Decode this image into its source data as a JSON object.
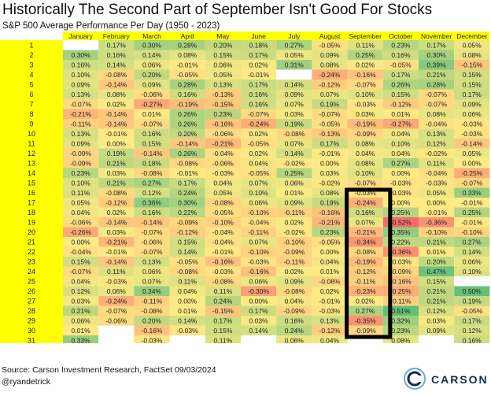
{
  "title": "Historically The Second Part of September Isn't Good For Stocks",
  "subtitle": "S&P 500 Average Performance Per Day (1950 - 2023)",
  "source": "Source: Carson Investment Research, FactSet 09/03/2024",
  "handle": "@ryandetrick",
  "logo": {
    "text": "CARSON"
  },
  "chart_data": {
    "type": "heatmap",
    "title": "Historically The Second Part of September Isn't Good For Stocks",
    "subtitle": "S&P 500 Average Performance Per Day (1950 - 2023)",
    "columns": [
      "January",
      "February",
      "March",
      "April",
      "May",
      "June",
      "July",
      "August",
      "September",
      "October",
      "November",
      "December"
    ],
    "rows": [
      "1",
      "2",
      "3",
      "4",
      "5",
      "6",
      "7",
      "8",
      "9",
      "10",
      "11",
      "12",
      "13",
      "14",
      "15",
      "16",
      "17",
      "18",
      "19",
      "20",
      "21",
      "22",
      "23",
      "24",
      "25",
      "26",
      "27",
      "28",
      "29",
      "30",
      "31"
    ],
    "values": [
      [
        null,
        "0.17%",
        "0.30%",
        "0.28%",
        "0.20%",
        "0.18%",
        "0.27%",
        "-0.05%",
        "0.11%",
        "0.23%",
        "0.17%",
        "0.05%"
      ],
      [
        "0.30%",
        "0.16%",
        "0.14%",
        "0.08%",
        "0.15%",
        "0.17%",
        "0.05%",
        "0.09%",
        "0.25%",
        "0.16%",
        "0.30%",
        "0.08%"
      ],
      [
        "0.16%",
        "0.14%",
        "0.06%",
        "-0.01%",
        "0.06%",
        "0.02%",
        "0.31%",
        "0.08%",
        "0.02%",
        "-0.05%",
        "0.39%",
        "-0.15%"
      ],
      [
        "0.10%",
        "-0.08%",
        "0.20%",
        "-0.05%",
        "0.05%",
        "-0.01%",
        null,
        "-0.24%",
        "-0.16%",
        "0.17%",
        "0.21%",
        "0.15%"
      ],
      [
        "0.09%",
        "-0.14%",
        "0.09%",
        "0.28%",
        "0.13%",
        "0.17%",
        "0.14%",
        "-0.12%",
        "-0.07%",
        "0.26%",
        "0.28%",
        "0.15%"
      ],
      [
        "0.13%",
        "0.08%",
        "-0.06%",
        "0.16%",
        "-0.13%",
        "0.16%",
        "0.09%",
        "0.07%",
        "0.10%",
        "0.15%",
        "-0.07%",
        "0.17%"
      ],
      [
        "-0.07%",
        "0.02%",
        "-0.27%",
        "-0.19%",
        "-0.15%",
        "0.16%",
        "0.07%",
        "0.19%",
        "-0.03%",
        "-0.12%",
        "-0.07%",
        "0.09%"
      ],
      [
        "-0.21%",
        "-0.14%",
        "0.01%",
        "0.26%",
        "0.23%",
        "-0.07%",
        "0.03%",
        "-0.07%",
        "0.03%",
        "0.01%",
        "0.08%",
        "0.06%"
      ],
      [
        "-0.11%",
        "-0.14%",
        "-0.07%",
        "0.26%",
        "-0.16%",
        "-0.24%",
        "0.19%",
        "-0.05%",
        "-0.19%",
        "-0.27%",
        "-0.04%",
        "-0.03%"
      ],
      [
        "0.13%",
        "-0.01%",
        "0.16%",
        "0.20%",
        "-0.06%",
        "0.02%",
        "-0.08%",
        "-0.13%",
        "-0.09%",
        "0.04%",
        "0.13%",
        "-0.03%"
      ],
      [
        "0.09%",
        "0.00%",
        "0.15%",
        "-0.14%",
        "-0.21%",
        "-0.05%",
        "0.07%",
        "0.17%",
        "0.08%",
        "0.10%",
        "0.12%",
        "-0.14%"
      ],
      [
        "-0.09%",
        "0.19%",
        "-0.14%",
        "0.26%",
        "-0.04%",
        "0.02%",
        "0.14%",
        "-0.01%",
        "0.04%",
        "0.04%",
        "-0.02%",
        "0.05%"
      ],
      [
        "-0.09%",
        "0.21%",
        "0.18%",
        "-0.08%",
        "-0.06%",
        "0.04%",
        "-0.02%",
        "0.00%",
        "0.08%",
        "0.27%",
        "0.11%",
        "0.00%"
      ],
      [
        "0.23%",
        "0.03%",
        "-0.08%",
        "-0.01%",
        "-0.03%",
        "-0.05%",
        "0.25%",
        "0.03%",
        "0.10%",
        "0.00%",
        "-0.04%",
        "-0.25%"
      ],
      [
        "0.10%",
        "0.21%",
        "0.27%",
        "0.17%",
        "0.04%",
        "0.07%",
        "0.06%",
        "-0.02%",
        "-0.07%",
        "-0.03%",
        "-0.03%",
        "-0.07%"
      ],
      [
        "0.11%",
        "-0.08%",
        "0.12%",
        "0.24%",
        "0.05%",
        "0.10%",
        "0.01%",
        "0.08%",
        "-0.03%",
        "-0.03%",
        "0.05%",
        "0.33%"
      ],
      [
        "0.05%",
        "-0.12%",
        "0.36%",
        "0.30%",
        "-0.08%",
        "0.06%",
        "0.09%",
        "0.19%",
        "-0.24%",
        "0.00%",
        "0.00%",
        "-0.01%"
      ],
      [
        "0.04%",
        "0.02%",
        "0.16%",
        "0.22%",
        "-0.05%",
        "-0.10%",
        "-0.11%",
        "-0.16%",
        "0.16%",
        "0.25%",
        "-0.01%",
        "0.25%"
      ],
      [
        "-0.06%",
        "-0.14%",
        "-0.14%",
        "-0.09%",
        "-0.10%",
        "-0.04%",
        "0.02%",
        "-0.21%",
        "0.07%",
        "-0.52%",
        "-0.36%",
        "-0.01%"
      ],
      [
        "-0.26%",
        "0.03%",
        "-0.07%",
        "-0.12%",
        "-0.04%",
        "-0.11%",
        "-0.02%",
        "0.23%",
        "-0.21%",
        "0.35%",
        "-0.10%",
        "-0.10%"
      ],
      [
        "0.00%",
        "-0.21%",
        "-0.06%",
        "0.15%",
        "-0.04%",
        "0.07%",
        "-0.10%",
        "-0.05%",
        "-0.34%",
        "0.22%",
        "0.21%",
        "0.27%"
      ],
      [
        "-0.04%",
        "-0.01%",
        "-0.07%",
        "0.14%",
        "-0.01%",
        "-0.10%",
        "-0.09%",
        "0.00%",
        "-0.08%",
        "-0.36%",
        "0.01%",
        "0.14%"
      ],
      [
        "0.15%",
        "-0.14%",
        "0.13%",
        "-0.05%",
        "-0.16%",
        "-0.03%",
        "-0.11%",
        "0.04%",
        "-0.19%",
        "-0.03%",
        "0.20%",
        "0.06%"
      ],
      [
        "-0.07%",
        "0.11%",
        "0.06%",
        "-0.08%",
        "-0.03%",
        "-0.16%",
        "0.02%",
        "0.01%",
        "-0.12%",
        "-0.09%",
        "0.47%",
        "0.10%"
      ],
      [
        "0.04%",
        "-0.03%",
        "0.07%",
        "0.11%",
        "-0.08%",
        "0.06%",
        "0.09%",
        "-0.08%",
        "-0.11%",
        "-0.16%",
        "0.15%",
        null
      ],
      [
        "0.12%",
        "0.06%",
        "0.34%",
        "0.04%",
        "0.11%",
        "-0.30%",
        "-0.08%",
        "0.02%",
        "-0.23%",
        "-0.25%",
        "0.21%",
        "0.50%"
      ],
      [
        "0.03%",
        "-0.24%",
        "-0.11%",
        "0.00%",
        "0.24%",
        "0.00%",
        "0.04%",
        "-0.01%",
        "0.02%",
        "-0.11%",
        "0.21%",
        "0.19%"
      ],
      [
        "0.21%",
        "-0.07%",
        "-0.08%",
        "0.01%",
        "-0.15%",
        "0.17%",
        "-0.09%",
        "-0.03%",
        "0.27%",
        "0.51%",
        "0.12%",
        "-0.05%"
      ],
      [
        "0.06%",
        "-0.06%",
        "0.20%",
        "0.14%",
        "0.17%",
        "0.03%",
        "0.16%",
        "0.13%",
        "-0.35%",
        "0.32%",
        "0.03%",
        "0.17%"
      ],
      [
        "0.01%",
        null,
        "-0.16%",
        "-0.03%",
        "0.15%",
        "0.14%",
        "0.24%",
        "-0.12%",
        "-0.09%",
        "0.23%",
        "0.09%",
        "0.12%"
      ],
      [
        "0.33%",
        null,
        "-0.03%",
        null,
        "0.11%",
        null,
        "0.06%",
        "0.04%",
        null,
        "0.08%",
        null,
        "0.16%"
      ]
    ],
    "highlight": {
      "column": "September",
      "from_day": "17",
      "to_day": "30",
      "style": "black box outline"
    },
    "color_scale": {
      "low": "#f8696b",
      "mid": "#ffeb84",
      "high": "#63be7b",
      "min": -0.52,
      "max": 0.51
    },
    "header_color": "#ffff00"
  }
}
